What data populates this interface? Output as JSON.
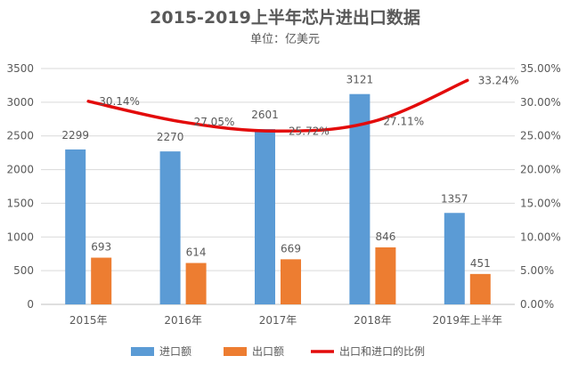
{
  "chart_data": {
    "type": "bar",
    "title": "2015-2019上半年芯片进出口数据",
    "subtitle": "单位：亿美元",
    "categories": [
      "2015年",
      "2016年",
      "2017年",
      "2018年",
      "2019年上半年"
    ],
    "series": [
      {
        "name": "进口额",
        "type": "bar",
        "axis": "left",
        "color": "#5B9BD5",
        "values": [
          2299,
          2270,
          2601,
          3121,
          1357
        ],
        "labels": [
          "2299",
          "2270",
          "2601",
          "3121",
          "1357"
        ]
      },
      {
        "name": "出口额",
        "type": "bar",
        "axis": "left",
        "color": "#ED7D31",
        "values": [
          693,
          614,
          669,
          846,
          451
        ],
        "labels": [
          "693",
          "614",
          "669",
          "846",
          "451"
        ]
      },
      {
        "name": "出口和进口的比例",
        "type": "line",
        "axis": "right",
        "color": "#E30B0B",
        "values": [
          30.14,
          27.05,
          25.72,
          27.11,
          33.24
        ],
        "labels": [
          "30.14%",
          "27.05%",
          "25.72%",
          "27.11%",
          "33.24%"
        ]
      }
    ],
    "y_left": {
      "min": 0,
      "max": 3500,
      "ticks": [
        0,
        500,
        1000,
        1500,
        2000,
        2500,
        3000,
        3500
      ],
      "tick_labels": [
        "0",
        "500",
        "1000",
        "1500",
        "2000",
        "2500",
        "3000",
        "3500"
      ]
    },
    "y_right": {
      "min": 0,
      "max": 35,
      "ticks": [
        0,
        5,
        10,
        15,
        20,
        25,
        30,
        35
      ],
      "tick_labels": [
        "0.00%",
        "5.00%",
        "10.00%",
        "15.00%",
        "20.00%",
        "25.00%",
        "30.00%",
        "35.00%"
      ]
    },
    "grid": true,
    "legend_position": "bottom",
    "colors": {
      "text": "#595959",
      "grid": "#D9D9D9"
    }
  }
}
